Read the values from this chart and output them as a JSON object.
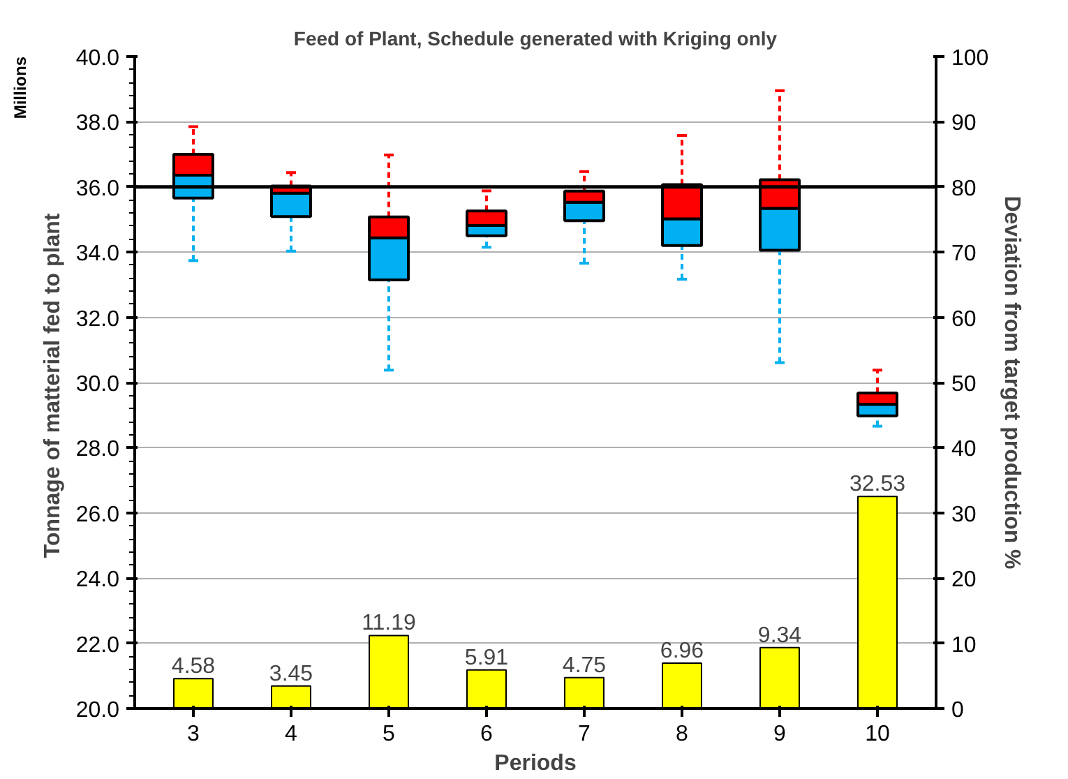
{
  "chart_data": {
    "type": "box",
    "title": "Feed of Plant, Schedule generated with Kriging only",
    "xlabel": "Periods",
    "ylabel": "Tonnage of  matterial fed to plant",
    "y2label": "Deviation from target production %",
    "annotations": [
      "Millions"
    ],
    "categories": [
      "3",
      "4",
      "5",
      "6",
      "7",
      "8",
      "9",
      "10"
    ],
    "series": [
      {
        "colors": [
          [
            "#00b0f0",
            "#ff0000"
          ],
          [
            "#00b0f0",
            "#ff0000"
          ],
          [
            "#00b0f0",
            "#ff0000"
          ],
          [
            "#00b0f0",
            "#ff0000"
          ],
          [
            "#00b0f0",
            "#ff0000"
          ],
          [
            "#00b0f0",
            "#ff0000"
          ],
          [
            "#00b0f0",
            "#ff0000"
          ],
          [
            "#00b0f0",
            "#ff0000"
          ]
        ],
        "boxes": [
          {
            "low": 33.74,
            "q1": 35.66,
            "median": 36.36,
            "q3": 37.0,
            "high": 37.85
          },
          {
            "low": 34.03,
            "q1": 35.09,
            "median": 35.81,
            "q3": 36.03,
            "high": 36.44
          },
          {
            "low": 30.38,
            "q1": 33.15,
            "median": 34.44,
            "q3": 35.08,
            "high": 36.98
          },
          {
            "low": 34.15,
            "q1": 34.5,
            "median": 34.82,
            "q3": 35.26,
            "high": 35.88
          },
          {
            "low": 33.66,
            "q1": 34.96,
            "median": 35.53,
            "q3": 35.87,
            "high": 36.47
          },
          {
            "low": 33.17,
            "q1": 34.2,
            "median": 35.02,
            "q3": 36.07,
            "high": 37.58
          },
          {
            "low": 30.61,
            "q1": 34.06,
            "median": 35.34,
            "q3": 36.22,
            "high": 38.95
          },
          {
            "low": 28.66,
            "q1": 28.98,
            "median": 29.33,
            "q3": 29.68,
            "high": 30.38
          }
        ]
      },
      {
        "type": "bar",
        "axis": "y2",
        "color": "#ffff00",
        "values": [
          4.58,
          3.45,
          11.19,
          5.91,
          4.75,
          6.96,
          9.34,
          32.53
        ]
      }
    ],
    "data_labels": true,
    "ref_lines": [
      {
        "axis": "y",
        "value": 36,
        "label": null,
        "color": "#000000"
      }
    ],
    "ylim": [
      20,
      40
    ],
    "yticks": [
      {
        "value": 20,
        "label": "20.0"
      },
      {
        "value": 22,
        "label": "22.0"
      },
      {
        "value": 24,
        "label": "24.0"
      },
      {
        "value": 26,
        "label": "26.0"
      },
      {
        "value": 28,
        "label": "28.0"
      },
      {
        "value": 30,
        "label": "30.0"
      },
      {
        "value": 32,
        "label": "32.0"
      },
      {
        "value": 34,
        "label": "34.0"
      },
      {
        "value": 36,
        "label": "36.0"
      },
      {
        "value": 38,
        "label": "38.0"
      },
      {
        "value": 40,
        "label": "40.0"
      }
    ],
    "y2lim": [
      0,
      100
    ],
    "y2ticks": [
      0,
      10,
      20,
      30,
      40,
      50,
      60,
      70,
      80,
      90,
      100
    ],
    "grid": "y"
  }
}
